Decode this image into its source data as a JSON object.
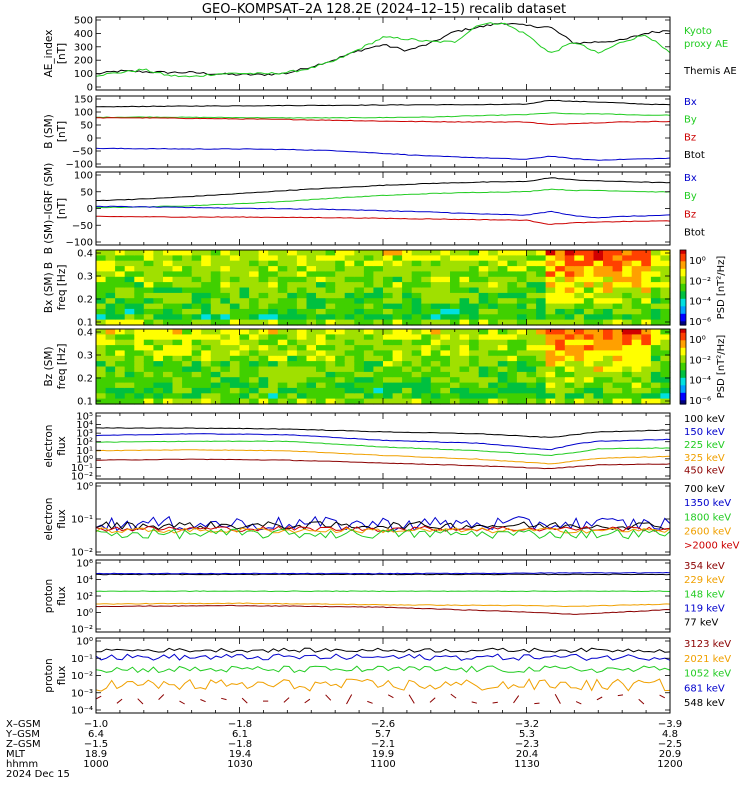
{
  "title": "GEO–KOMPSAT–2A 128.2E (2024–12–15) recalib dataset",
  "colors": {
    "black": "#000000",
    "green": "#22cc22",
    "red": "#cc0000",
    "blue": "#0000cc",
    "orange": "#f0a000",
    "darkred": "#8b0000"
  },
  "chart_data": [
    {
      "panel": "ae_index",
      "type": "line",
      "ylabel": [
        "AE_index",
        "[nT]"
      ],
      "yticks": [
        "500",
        "400",
        "300",
        "200",
        "100",
        "0"
      ],
      "ylim": [
        0,
        500
      ],
      "legend": [
        {
          "label": "Kyoto",
          "color": "#22cc22"
        },
        {
          "label": "proxy AE",
          "color": "#22cc22"
        },
        {
          "label": "Themis AE",
          "color": "#000000"
        }
      ],
      "x": [
        0,
        5,
        10,
        15,
        20,
        25,
        30,
        35,
        40,
        45,
        50,
        55,
        60,
        65,
        70,
        75,
        80,
        85,
        90,
        95,
        100,
        105,
        110,
        115,
        120
      ],
      "series": [
        {
          "name": "Themis AE",
          "color": "#000000",
          "values": [
            110,
            130,
            125,
            120,
            120,
            110,
            105,
            105,
            115,
            160,
            210,
            270,
            310,
            270,
            320,
            400,
            430,
            460,
            440,
            430,
            320,
            330,
            340,
            390,
            410
          ]
        },
        {
          "name": "proxy AE",
          "color": "#22cc22",
          "values": [
            100,
            120,
            140,
            100,
            90,
            110,
            115,
            110,
            120,
            150,
            200,
            280,
            360,
            350,
            330,
            330,
            450,
            460,
            380,
            250,
            330,
            250,
            330,
            380,
            250
          ]
        }
      ]
    },
    {
      "panel": "b_sm",
      "type": "line",
      "ylabel": [
        "B (SM)",
        "[nT]"
      ],
      "yticks": [
        "150",
        "100",
        "50",
        "0",
        "−50",
        "−100"
      ],
      "ylim": [
        -110,
        150
      ],
      "legend": [
        {
          "label": "Bx",
          "color": "#0000cc"
        },
        {
          "label": "By",
          "color": "#22cc22"
        },
        {
          "label": "Bz",
          "color": "#cc0000"
        },
        {
          "label": "Btot",
          "color": "#000000"
        }
      ],
      "x": [
        0,
        10,
        20,
        30,
        40,
        50,
        60,
        70,
        80,
        90,
        95,
        100,
        105,
        110,
        115,
        120
      ],
      "series": [
        {
          "name": "Btot",
          "color": "#000000",
          "values": [
            110,
            112,
            113,
            114,
            115,
            116,
            117,
            118,
            118,
            120,
            135,
            130,
            128,
            124,
            120,
            118
          ]
        },
        {
          "name": "By",
          "color": "#22cc22",
          "values": [
            72,
            73,
            72,
            71,
            70,
            70,
            71,
            73,
            78,
            82,
            88,
            84,
            85,
            82,
            80,
            80
          ]
        },
        {
          "name": "Bz",
          "color": "#cc0000",
          "values": [
            70,
            70,
            68,
            66,
            64,
            61,
            58,
            56,
            55,
            55,
            45,
            50,
            52,
            55,
            56,
            57
          ]
        },
        {
          "name": "Bx",
          "color": "#0000cc",
          "values": [
            -42,
            -43,
            -44,
            -44,
            -46,
            -50,
            -60,
            -70,
            -76,
            -82,
            -70,
            -80,
            -85,
            -82,
            -80,
            -78
          ]
        }
      ]
    },
    {
      "panel": "b_sm_igrf",
      "type": "line",
      "ylabel": [
        "B (SM)–IGRF (SM)",
        "[nT]"
      ],
      "yticks": [
        "100",
        "50",
        "0",
        "−50",
        "−100"
      ],
      "ylim": [
        -120,
        110
      ],
      "legend": [
        {
          "label": "Bx",
          "color": "#0000cc"
        },
        {
          "label": "By",
          "color": "#22cc22"
        },
        {
          "label": "Bz",
          "color": "#cc0000"
        },
        {
          "label": "Btot",
          "color": "#000000"
        }
      ],
      "x": [
        0,
        10,
        20,
        30,
        40,
        50,
        60,
        70,
        80,
        90,
        95,
        100,
        105,
        110,
        115,
        120
      ],
      "series": [
        {
          "name": "Btot",
          "color": "#000000",
          "values": [
            20,
            25,
            33,
            42,
            52,
            60,
            68,
            74,
            78,
            80,
            92,
            85,
            82,
            80,
            78,
            76
          ]
        },
        {
          "name": "By",
          "color": "#22cc22",
          "values": [
            -2,
            0,
            4,
            10,
            18,
            28,
            36,
            42,
            46,
            48,
            56,
            52,
            52,
            50,
            48,
            47
          ]
        },
        {
          "name": "Bx",
          "color": "#0000cc",
          "values": [
            2,
            0,
            -2,
            -4,
            -6,
            -8,
            -12,
            -16,
            -22,
            -26,
            -14,
            -28,
            -34,
            -30,
            -28,
            -26
          ]
        },
        {
          "name": "Bz",
          "color": "#cc0000",
          "values": [
            -30,
            -31,
            -32,
            -32,
            -33,
            -34,
            -36,
            -38,
            -40,
            -42,
            -55,
            -50,
            -48,
            -46,
            -45,
            -44
          ]
        }
      ]
    },
    {
      "panel": "bx_spectrogram",
      "type": "heatmap",
      "ylabel": [
        "Bx (SM) B",
        "freq [Hz]"
      ],
      "yticks": [
        "0.4",
        "0.3",
        "0.2",
        "0.1"
      ],
      "ylim": [
        0,
        0.5
      ],
      "colorbar": {
        "label": "PSD [nT²/Hz]",
        "ticks": [
          "10⁰",
          "10⁻²",
          "10⁻⁴",
          "10⁻⁶"
        ],
        "range": [
          -7,
          1
        ]
      }
    },
    {
      "panel": "bz_spectrogram",
      "type": "heatmap",
      "ylabel": [
        "Bz (SM)",
        "freq [Hz]"
      ],
      "yticks": [
        "0.4",
        "0.3",
        "0.2",
        "0.1"
      ],
      "ylim": [
        0,
        0.5
      ],
      "colorbar": {
        "label": "PSD [nT²/Hz]",
        "ticks": [
          "10⁰",
          "10⁻²",
          "10⁻⁴",
          "10⁻⁶"
        ],
        "range": [
          -7,
          1
        ]
      }
    },
    {
      "panel": "electron_flux_low",
      "type": "line",
      "ylabel": [
        "electron",
        "flux"
      ],
      "yticks": [
        "10⁵",
        "10⁴",
        "10³",
        "10²",
        "10¹",
        "10⁰",
        "10⁻¹",
        "10⁻²"
      ],
      "ylim": [
        -2,
        5
      ],
      "scale": "log",
      "legend": [
        {
          "label": "100 keV",
          "color": "#000000"
        },
        {
          "label": "150 keV",
          "color": "#0000cc"
        },
        {
          "label": "225 keV",
          "color": "#22cc22"
        },
        {
          "label": "325 keV",
          "color": "#f0a000"
        },
        {
          "label": "450 keV",
          "color": "#8b0000"
        }
      ],
      "x": [
        0,
        20,
        40,
        60,
        80,
        95,
        100,
        105,
        120
      ],
      "series": [
        {
          "name": "100 keV",
          "color": "#000000",
          "values": [
            3.4,
            3.4,
            3.3,
            3.0,
            2.8,
            2.4,
            2.7,
            3.0,
            3.2
          ]
        },
        {
          "name": "150 keV",
          "color": "#0000cc",
          "values": [
            2.6,
            2.8,
            2.7,
            2.1,
            1.8,
            1.1,
            1.7,
            2.0,
            2.2
          ]
        },
        {
          "name": "225 keV",
          "color": "#22cc22",
          "values": [
            1.9,
            2.0,
            2.0,
            1.4,
            1.0,
            0.5,
            0.8,
            1.2,
            1.3
          ]
        },
        {
          "name": "325 keV",
          "color": "#f0a000",
          "values": [
            1.0,
            1.1,
            1.0,
            0.5,
            0.1,
            -0.4,
            -0.1,
            0.2,
            0.4
          ]
        },
        {
          "name": "450 keV",
          "color": "#8b0000",
          "values": [
            0.0,
            0.1,
            0.0,
            -0.3,
            -0.6,
            -0.9,
            -0.7,
            -0.5,
            -0.4
          ]
        }
      ]
    },
    {
      "panel": "electron_flux_high",
      "type": "line",
      "ylabel": [
        "electron",
        "flux"
      ],
      "yticks": [
        "10⁰",
        "10⁻¹",
        "10⁻²"
      ],
      "ylim": [
        -2.2,
        0
      ],
      "scale": "log",
      "legend": [
        {
          "label": "700 keV",
          "color": "#000000"
        },
        {
          "label": "1350 keV",
          "color": "#0000cc"
        },
        {
          "label": "1800 keV",
          "color": "#22cc22"
        },
        {
          "label": "2600 keV",
          "color": "#f0a000"
        },
        {
          "label": ">2000 keV",
          "color": "#cc0000"
        }
      ],
      "series": [
        {
          "name": "1350 keV",
          "color": "#0000cc",
          "base": -1.25,
          "noise": 0.22
        },
        {
          "name": "700 keV",
          "color": "#000000",
          "base": -1.3,
          "noise": 0.12
        },
        {
          "name": ">2000 keV",
          "color": "#cc0000",
          "base": -1.4,
          "noise": 0.08
        },
        {
          "name": "2600 keV",
          "color": "#f0a000",
          "base": -1.45,
          "noise": 0.08
        },
        {
          "name": "1800 keV",
          "color": "#22cc22",
          "base": -1.55,
          "noise": 0.15
        }
      ]
    },
    {
      "panel": "proton_flux_low",
      "type": "line",
      "ylabel": [
        "proton",
        "flux"
      ],
      "yticks": [
        "10⁶",
        "10⁴",
        "10²",
        "10⁰",
        "10⁻²"
      ],
      "ylim": [
        -3,
        6
      ],
      "scale": "log",
      "legend": [
        {
          "label": "354 keV",
          "color": "#8b0000"
        },
        {
          "label": "229 keV",
          "color": "#f0a000"
        },
        {
          "label": "148 keV",
          "color": "#22cc22"
        },
        {
          "label": "119 keV",
          "color": "#0000cc"
        },
        {
          "label": "77 keV",
          "color": "#000000"
        }
      ],
      "x": [
        0,
        30,
        60,
        90,
        100,
        120
      ],
      "series": [
        {
          "name": "77 keV",
          "color": "#000000",
          "values": [
            4.2,
            4.2,
            4.2,
            4.2,
            4.2,
            4.2
          ]
        },
        {
          "name": "119 keV",
          "color": "#0000cc",
          "values": [
            4.3,
            4.3,
            4.3,
            4.35,
            4.4,
            4.4
          ]
        },
        {
          "name": "148 keV",
          "color": "#22cc22",
          "values": [
            2.1,
            2.1,
            2.1,
            2.1,
            2.1,
            2.1
          ]
        },
        {
          "name": "229 keV",
          "color": "#f0a000",
          "values": [
            0.5,
            0.6,
            0.4,
            0.3,
            0.2,
            0.5
          ]
        },
        {
          "name": "354 keV",
          "color": "#8b0000",
          "values": [
            0.2,
            0.3,
            0.1,
            -0.5,
            -0.8,
            -0.2
          ]
        }
      ]
    },
    {
      "panel": "proton_flux_high",
      "type": "line",
      "ylabel": [
        "proton",
        "flux"
      ],
      "yticks": [
        "10⁰",
        "10⁻¹",
        "10⁻²",
        "10⁻³",
        "10⁻⁴"
      ],
      "ylim": [
        -4.3,
        0
      ],
      "scale": "log",
      "legend": [
        {
          "label": "3123 keV",
          "color": "#8b0000"
        },
        {
          "label": "2021 keV",
          "color": "#f0a000"
        },
        {
          "label": "1052 keV",
          "color": "#22cc22"
        },
        {
          "label": "681 keV",
          "color": "#0000cc"
        },
        {
          "label": "548 keV",
          "color": "#000000"
        }
      ],
      "series": [
        {
          "name": "548 keV",
          "color": "#000000",
          "base": -0.7,
          "noise": 0.12
        },
        {
          "name": "681 keV",
          "color": "#0000cc",
          "base": -1.1,
          "noise": 0.18
        },
        {
          "name": "1052 keV",
          "color": "#22cc22",
          "base": -1.8,
          "noise": 0.2
        },
        {
          "name": "2021 keV",
          "color": "#f0a000",
          "base": -2.7,
          "noise": 0.35
        },
        {
          "name": "3123 keV",
          "color": "#8b0000",
          "base": -3.5,
          "noise": 0.3
        }
      ]
    }
  ],
  "x_axis": {
    "row_labels": [
      "X–GSM",
      "Y–GSM",
      "Z–GSM",
      "MLT",
      "hhmm",
      "2024 Dec 15"
    ],
    "ticks": [
      {
        "values": [
          "−1.0",
          "6.4",
          "−1.5",
          "18.9",
          "1000"
        ]
      },
      {
        "values": [
          "−1.8",
          "6.1",
          "−1.8",
          "19.4",
          "1030"
        ]
      },
      {
        "values": [
          "−2.6",
          "5.7",
          "−2.1",
          "19.9",
          "1100"
        ]
      },
      {
        "values": [
          "−3.2",
          "5.3",
          "−2.3",
          "20.4",
          "1130"
        ]
      },
      {
        "values": [
          "−3.9",
          "4.8",
          "−2.5",
          "20.9",
          "1200"
        ]
      }
    ]
  }
}
